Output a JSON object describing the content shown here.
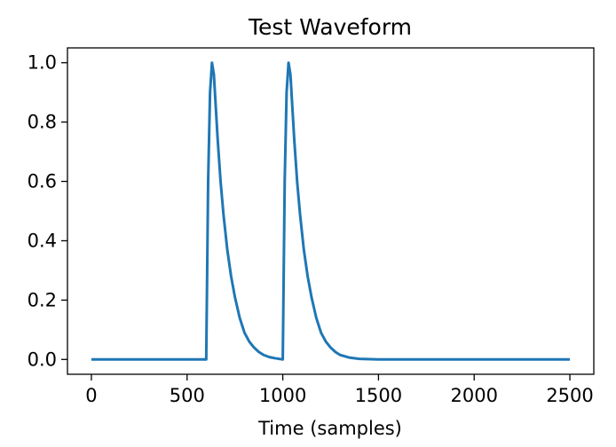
{
  "chart_data": {
    "type": "line",
    "title": "Test Waveform",
    "xlabel": "Time (samples)",
    "ylabel": "",
    "xlim": [
      -125,
      2625
    ],
    "ylim": [
      -0.05,
      1.05
    ],
    "grid": false,
    "x_ticks": [
      0,
      500,
      1000,
      1500,
      2000,
      2500
    ],
    "x_tick_labels": [
      "0",
      "500",
      "1000",
      "1500",
      "2000",
      "2500"
    ],
    "y_ticks": [
      0.0,
      0.2,
      0.4,
      0.6,
      0.8,
      1.0
    ],
    "y_tick_labels": [
      "0.0",
      "0.2",
      "0.4",
      "0.6",
      "0.8",
      "1.0"
    ],
    "series": [
      {
        "color": "#1f77b4",
        "x": [
          0,
          600,
          610,
          620,
          630,
          640,
          650,
          660,
          675,
          690,
          710,
          730,
          750,
          775,
          800,
          825,
          850,
          875,
          900,
          930,
          960,
          1000,
          1010,
          1020,
          1030,
          1040,
          1050,
          1060,
          1075,
          1090,
          1110,
          1130,
          1150,
          1175,
          1200,
          1225,
          1250,
          1275,
          1300,
          1350,
          1400,
          1500,
          2000,
          2500
        ],
        "y": [
          0.0,
          0.0,
          0.6,
          0.9,
          1.0,
          0.96,
          0.85,
          0.74,
          0.6,
          0.49,
          0.37,
          0.28,
          0.21,
          0.14,
          0.09,
          0.06,
          0.04,
          0.025,
          0.015,
          0.008,
          0.004,
          0.0,
          0.6,
          0.9,
          1.0,
          0.96,
          0.85,
          0.74,
          0.6,
          0.49,
          0.37,
          0.28,
          0.21,
          0.14,
          0.09,
          0.06,
          0.04,
          0.025,
          0.015,
          0.006,
          0.002,
          0.0,
          0.0,
          0.0
        ]
      }
    ]
  }
}
